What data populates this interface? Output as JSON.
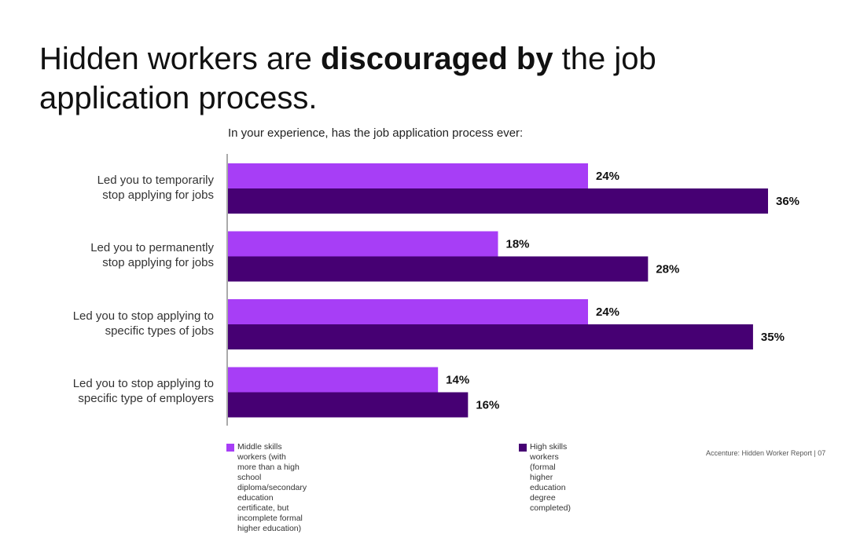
{
  "header": {
    "title_part1": "Hidden workers are ",
    "title_bold": "discouraged by",
    "title_part2": " the job application process.",
    "subtitle": "In your experience, has the job application process ever:"
  },
  "chart_data": {
    "type": "bar",
    "orientation": "horizontal",
    "categories": [
      "Led you to temporarily stop applying for jobs",
      "Led you to permanently stop applying for jobs",
      "Led you to stop applying to specific types of jobs",
      "Led you to stop applying to specific type of employers"
    ],
    "category_lines": [
      [
        "Led you to temporarily",
        "stop applying for jobs"
      ],
      [
        "Led you to permanently",
        "stop applying for jobs"
      ],
      [
        "Led you to stop applying to",
        "specific types of jobs"
      ],
      [
        "Led you to stop applying to",
        "specific type of employers"
      ]
    ],
    "series": [
      {
        "name": "Middle skills workers (with more than a high school diploma/secondary education certificate, but incomplete formal higher education)",
        "values": [
          24,
          18,
          24,
          14
        ],
        "labels": [
          "24%",
          "18%",
          "24%",
          "14%"
        ],
        "color": "#a73ef6"
      },
      {
        "name": "High skills workers (formal higher education degree completed)",
        "values": [
          36,
          28,
          35,
          16
        ],
        "labels": [
          "36%",
          "28%",
          "35%",
          "16%"
        ],
        "color": "#460073"
      }
    ],
    "xlim": [
      0,
      36
    ],
    "legend": {
      "position": "bottom",
      "middle_lines": [
        "Middle skills workers (with more than a high school diploma/secondary",
        "education certificate, but incomplete formal higher education)"
      ],
      "high_lines": [
        "High skills workers (formal higher",
        "education degree completed)"
      ]
    }
  },
  "footer": {
    "source": "Accenture: Hidden Worker Report | 07"
  }
}
